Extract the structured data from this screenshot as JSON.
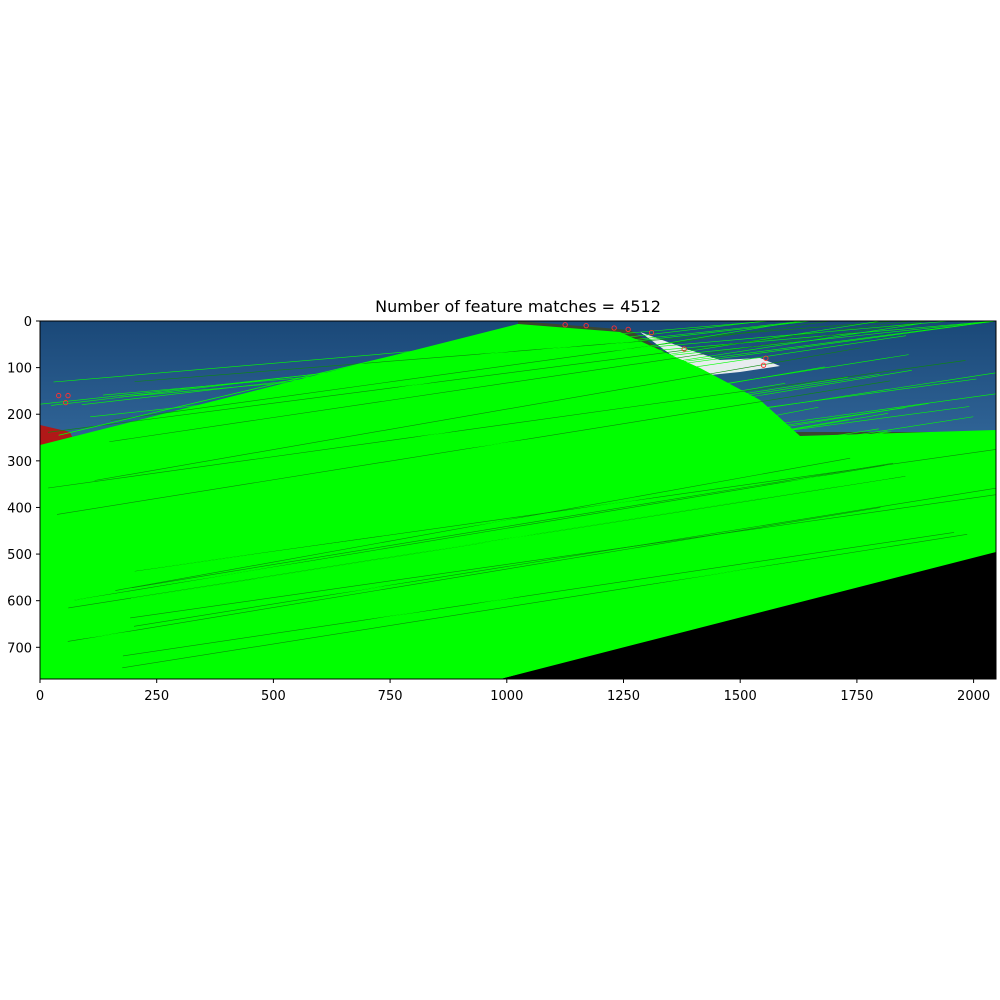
{
  "chart_data": {
    "type": "image",
    "title": "Number of feature matches = 4512",
    "xlabel": "",
    "ylabel": "",
    "xlim": [
      0,
      2048
    ],
    "ylim": [
      768,
      0
    ],
    "xticks": [
      0,
      250,
      500,
      750,
      1000,
      1250,
      1500,
      1750,
      2000
    ],
    "yticks": [
      0,
      100,
      200,
      300,
      400,
      500,
      600,
      700
    ],
    "grid": false,
    "image_width": 2048,
    "image_height": 768,
    "colors": {
      "match_line": "#00ff00",
      "keypoint": "#ff3030",
      "sky_top": "#1a4878",
      "sky_bottom": "#7aa6cc",
      "sea": "#2a4a70",
      "black_fill": "#000000"
    }
  }
}
